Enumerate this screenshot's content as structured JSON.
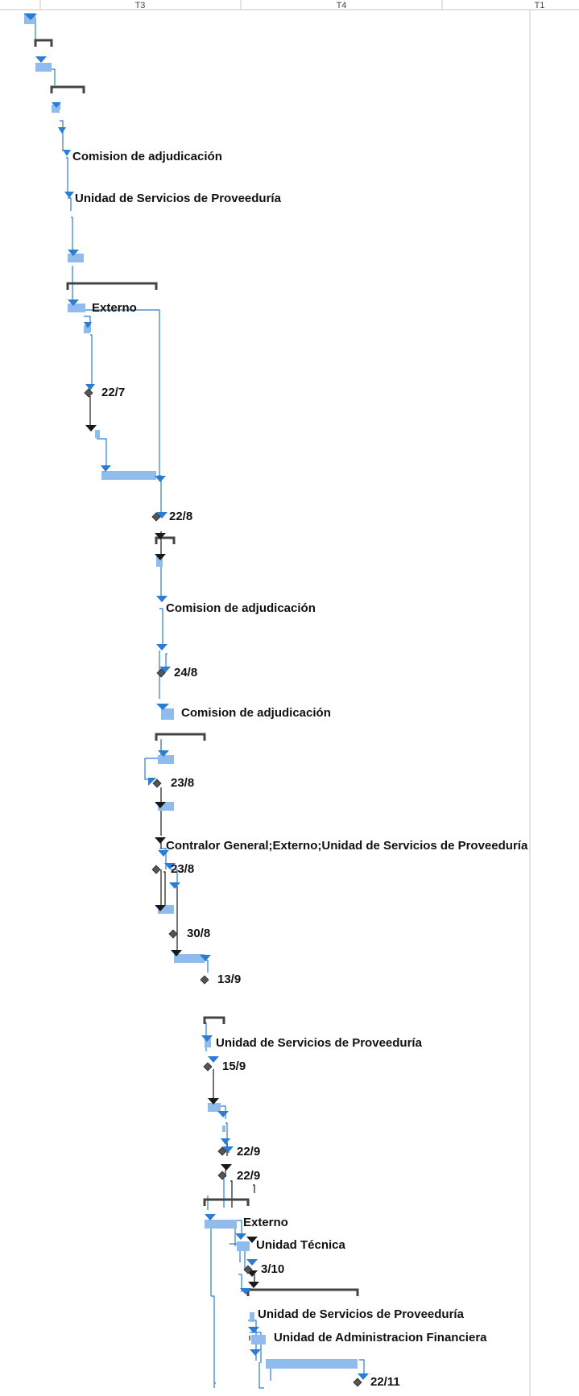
{
  "timescale": {
    "periods": [
      "T3",
      "T4",
      "T1"
    ]
  },
  "colors": {
    "task_bar": "#8fbbed",
    "task_link": "#2b7cd3",
    "critical_link": "#1a1a1a",
    "summary_bar": "#444444",
    "milestone": "#555555",
    "grid": "#c8c8c8"
  },
  "resource_labels": [
    "Comision de adjudicación",
    "Unidad de Servicios de Proveeduría",
    "Externo",
    "Comision de adjudicación",
    "Comision de adjudicación",
    "Contralor General;Externo;Unidad de Servicios de Proveeduría",
    "Unidad de Servicios de Proveeduría",
    "Externo",
    "Unidad Técnica",
    "Unidad de Servicios de Proveeduría",
    "Unidad de Administracion Financiera"
  ],
  "milestone_dates": [
    "22/7",
    "22/8",
    "24/8",
    "23/8",
    "23/8",
    "30/8",
    "13/9",
    "15/9",
    "22/9",
    "22/9",
    "3/10",
    "22/11"
  ]
}
